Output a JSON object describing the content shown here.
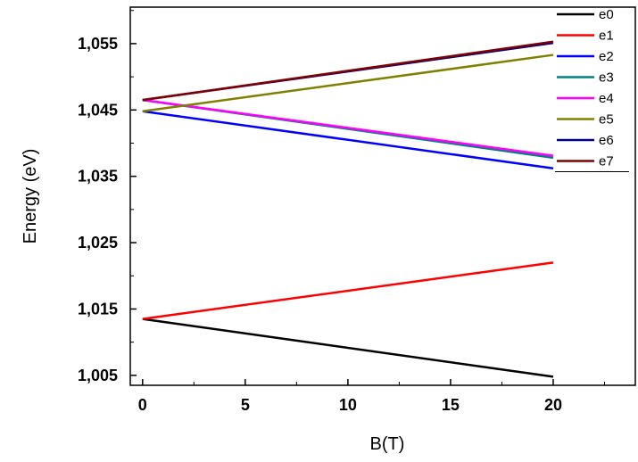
{
  "chart_data": {
    "type": "line",
    "title": "",
    "xlabel": "B(T)",
    "ylabel": "Energy (eV)",
    "xlim": [
      -0.6,
      24
    ],
    "ylim": [
      1.0035,
      1.0605
    ],
    "x_ticks": [
      0,
      5,
      10,
      15,
      20
    ],
    "x_tick_labels": [
      "0",
      "5",
      "10",
      "15",
      "20"
    ],
    "y_ticks": [
      1.005,
      1.015,
      1.025,
      1.035,
      1.045,
      1.055
    ],
    "y_tick_labels": [
      "1,005",
      "1,015",
      "1,025",
      "1,035",
      "1,045",
      "1,055"
    ],
    "grid": false,
    "legend_position": "top-right",
    "series": [
      {
        "name": "e0",
        "color": "#000000",
        "x": [
          0,
          20
        ],
        "y": [
          1.0135,
          1.0048
        ]
      },
      {
        "name": "e1",
        "color": "#ff0000",
        "x": [
          0,
          20
        ],
        "y": [
          1.0135,
          1.022
        ]
      },
      {
        "name": "e2",
        "color": "#0000ff",
        "x": [
          0,
          20
        ],
        "y": [
          1.0448,
          1.0362
        ]
      },
      {
        "name": "e3",
        "color": "#008080",
        "x": [
          0,
          20
        ],
        "y": [
          1.0465,
          1.0378
        ]
      },
      {
        "name": "e4",
        "color": "#ff00ff",
        "x": [
          0,
          20
        ],
        "y": [
          1.0465,
          1.0381
        ]
      },
      {
        "name": "e5",
        "color": "#808000",
        "x": [
          0,
          20
        ],
        "y": [
          1.0448,
          1.0533
        ]
      },
      {
        "name": "e6",
        "color": "#000080",
        "x": [
          0,
          20
        ],
        "y": [
          1.0465,
          1.0551
        ]
      },
      {
        "name": "e7",
        "color": "#800000",
        "x": [
          0,
          20
        ],
        "y": [
          1.0465,
          1.0553
        ]
      }
    ]
  }
}
